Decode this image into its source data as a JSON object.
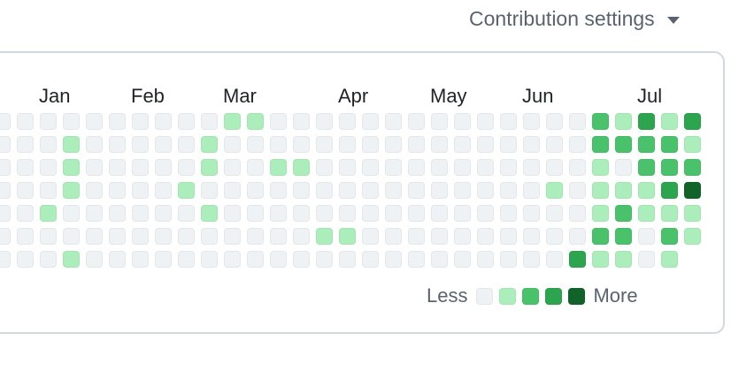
{
  "header": {
    "settings_label": "Contribution settings"
  },
  "months": [
    "Jan",
    "Feb",
    "Mar",
    "Apr",
    "May",
    "Jun",
    "Jul"
  ],
  "legend": {
    "less": "Less",
    "more": "More",
    "levels": [
      "#eff2f5",
      "#aceebb",
      "#4ac26b",
      "#2da44e",
      "#116329"
    ]
  },
  "contribution_grid": {
    "rows": 7,
    "columns": 31,
    "days_per_column_order": [
      "Sun",
      "Mon",
      "Tue",
      "Wed",
      "Thu",
      "Fri",
      "Sat"
    ],
    "levels": [
      [
        0,
        0,
        0,
        0,
        0,
        0,
        0
      ],
      [
        0,
        0,
        0,
        0,
        0,
        0,
        0
      ],
      [
        0,
        0,
        0,
        0,
        1,
        0,
        0
      ],
      [
        0,
        1,
        1,
        1,
        0,
        0,
        1
      ],
      [
        0,
        0,
        0,
        0,
        0,
        0,
        0
      ],
      [
        0,
        0,
        0,
        0,
        0,
        0,
        0
      ],
      [
        0,
        0,
        0,
        0,
        0,
        0,
        0
      ],
      [
        0,
        0,
        0,
        0,
        0,
        0,
        0
      ],
      [
        0,
        0,
        0,
        1,
        0,
        0,
        0
      ],
      [
        0,
        1,
        1,
        0,
        1,
        0,
        0
      ],
      [
        1,
        0,
        0,
        0,
        0,
        0,
        0
      ],
      [
        1,
        0,
        0,
        0,
        0,
        0,
        0
      ],
      [
        0,
        0,
        1,
        0,
        0,
        0,
        0
      ],
      [
        0,
        0,
        1,
        0,
        0,
        0,
        0
      ],
      [
        0,
        0,
        0,
        0,
        0,
        1,
        0
      ],
      [
        0,
        0,
        0,
        0,
        0,
        1,
        0
      ],
      [
        0,
        0,
        0,
        0,
        0,
        0,
        0
      ],
      [
        0,
        0,
        0,
        0,
        0,
        0,
        0
      ],
      [
        0,
        0,
        0,
        0,
        0,
        0,
        0
      ],
      [
        0,
        0,
        0,
        0,
        0,
        0,
        0
      ],
      [
        0,
        0,
        0,
        0,
        0,
        0,
        0
      ],
      [
        0,
        0,
        0,
        0,
        0,
        0,
        0
      ],
      [
        0,
        0,
        0,
        0,
        0,
        0,
        0
      ],
      [
        0,
        0,
        0,
        0,
        0,
        0,
        0
      ],
      [
        0,
        0,
        0,
        1,
        0,
        0,
        0
      ],
      [
        0,
        0,
        0,
        0,
        0,
        0,
        3
      ],
      [
        2,
        2,
        1,
        1,
        1,
        2,
        1
      ],
      [
        1,
        2,
        0,
        1,
        2,
        2,
        1
      ],
      [
        3,
        2,
        2,
        1,
        1,
        0,
        0
      ],
      [
        1,
        2,
        2,
        3,
        1,
        2,
        1
      ],
      [
        3,
        1,
        2,
        4,
        1,
        1,
        -1
      ]
    ]
  }
}
